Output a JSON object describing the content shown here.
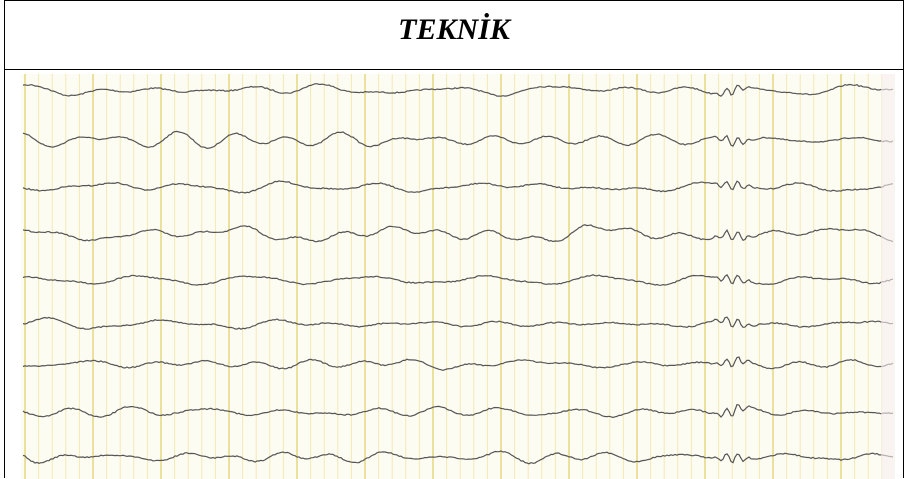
{
  "header": {
    "title": "TEKNİK"
  }
}
